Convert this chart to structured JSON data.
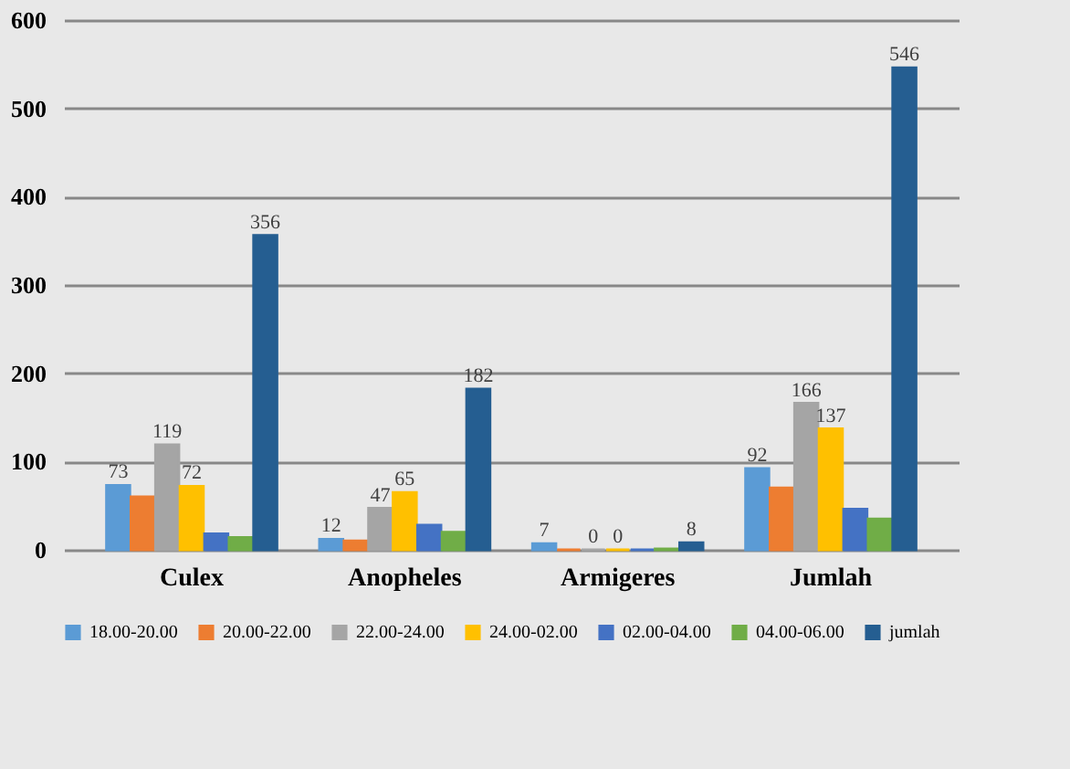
{
  "chart_data": {
    "type": "bar",
    "categories": [
      "Culex",
      "Anopheles",
      "Armigeres",
      "Jumlah"
    ],
    "series": [
      {
        "name": "18.00-20.00",
        "color": "#5b9bd5",
        "values": [
          73,
          12,
          7,
          92
        ],
        "value_labels": [
          "73",
          "12",
          "7",
          "92"
        ]
      },
      {
        "name": "20.00-22.00",
        "color": "#ed7d31",
        "values": [
          60,
          10,
          0,
          70
        ],
        "value_labels": [
          null,
          null,
          null,
          null
        ]
      },
      {
        "name": "22.00-24.00",
        "color": "#a5a5a5",
        "values": [
          119,
          47,
          0,
          166
        ],
        "value_labels": [
          "119",
          "47",
          "0",
          "166"
        ]
      },
      {
        "name": "24.00-02.00",
        "color": "#ffc000",
        "values": [
          72,
          65,
          0,
          137
        ],
        "value_labels": [
          "72",
          "65",
          "0",
          "137"
        ]
      },
      {
        "name": "02.00-04.00",
        "color": "#4472c4",
        "values": [
          18,
          28,
          0,
          46
        ],
        "value_labels": [
          null,
          null,
          null,
          null
        ]
      },
      {
        "name": "04.00-06.00",
        "color": "#70ad47",
        "values": [
          14,
          20,
          1,
          35
        ],
        "value_labels": [
          null,
          null,
          null,
          null
        ]
      },
      {
        "name": "jumlah",
        "color": "#255e91",
        "values": [
          356,
          182,
          8,
          546
        ],
        "value_labels": [
          "356",
          "182",
          "8",
          "546"
        ]
      }
    ],
    "ylim": [
      0,
      600
    ],
    "yticks": [
      0,
      100,
      200,
      300,
      400,
      500,
      600
    ],
    "grid": "y",
    "legend": "bottom"
  }
}
